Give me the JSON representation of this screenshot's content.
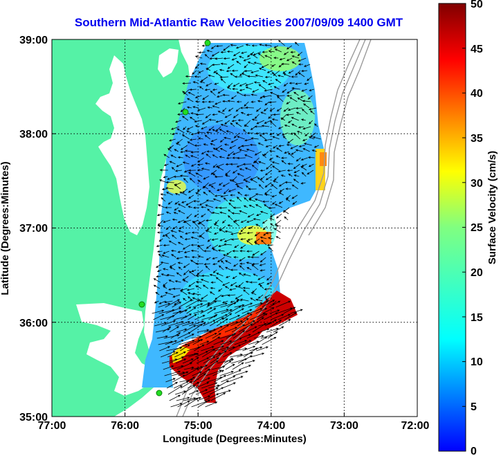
{
  "title": "Southern Mid-Atlantic Raw Velocities 2007/09/09 1400 GMT",
  "x_axis": {
    "label": "Longitude (Degrees:Minutes)",
    "ticks": [
      "77:00",
      "76:00",
      "75:00",
      "74:00",
      "73:00",
      "72:00"
    ]
  },
  "y_axis": {
    "label": "Latitude (Degrees:Minutes)",
    "ticks": [
      "39:00",
      "38:00",
      "37:00",
      "36:00",
      "35:00"
    ]
  },
  "colorbar": {
    "label": "Surface Velocity (cm/s)",
    "ticks": [
      "50",
      "45",
      "40",
      "35",
      "30",
      "25",
      "20",
      "15",
      "10",
      "5",
      "0"
    ],
    "min": 0,
    "max": 50,
    "colormap": "jet"
  },
  "colors": {
    "land": "#55f2a6",
    "water": "#ffffff",
    "title": "#0000ee",
    "grid": "#000000",
    "bathymetry": "#9a9a9a",
    "vectors": "#000000",
    "stations": "#22dd22"
  },
  "map_extent": {
    "lon_west": "77:00",
    "lon_east": "72:00",
    "lat_south": "35:00",
    "lat_north": "39:00"
  }
}
